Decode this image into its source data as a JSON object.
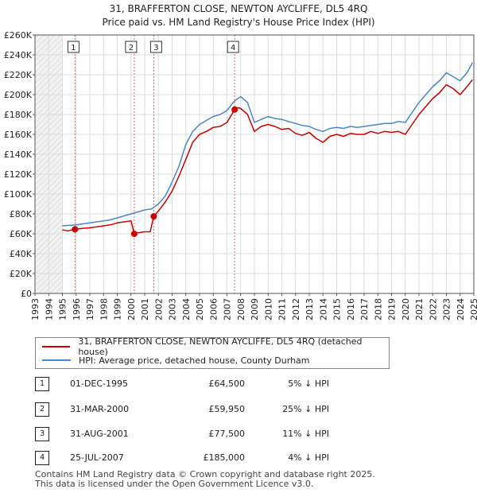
{
  "chart_data": {
    "type": "line",
    "title": "31, BRAFFERTON CLOSE, NEWTON AYCLIFFE, DL5 4RQ",
    "subtitle": "Price paid vs. HM Land Registry's House Price Index (HPI)",
    "xlabel": "",
    "ylabel": "",
    "xlim": [
      1993,
      2025
    ],
    "ylim": [
      0,
      260000
    ],
    "x_ticks": [
      "1993",
      "1994",
      "1995",
      "1996",
      "1997",
      "1998",
      "1999",
      "2000",
      "2001",
      "2002",
      "2003",
      "2004",
      "2005",
      "2006",
      "2007",
      "2008",
      "2009",
      "2010",
      "2011",
      "2012",
      "2013",
      "2014",
      "2015",
      "2016",
      "2017",
      "2018",
      "2019",
      "2020",
      "2021",
      "2022",
      "2023",
      "2024",
      "2025"
    ],
    "y_ticks": [
      {
        "value": 0,
        "label": "£0"
      },
      {
        "value": 20000,
        "label": "£20K"
      },
      {
        "value": 40000,
        "label": "£40K"
      },
      {
        "value": 60000,
        "label": "£60K"
      },
      {
        "value": 80000,
        "label": "£80K"
      },
      {
        "value": 100000,
        "label": "£100K"
      },
      {
        "value": 120000,
        "label": "£120K"
      },
      {
        "value": 140000,
        "label": "£140K"
      },
      {
        "value": 160000,
        "label": "£160K"
      },
      {
        "value": 180000,
        "label": "£180K"
      },
      {
        "value": 200000,
        "label": "£200K"
      },
      {
        "value": 220000,
        "label": "£220K"
      },
      {
        "value": 240000,
        "label": "£240K"
      },
      {
        "value": 260000,
        "label": "£260K"
      }
    ],
    "grid": true,
    "no_data_shading_until": 1995.0,
    "series": [
      {
        "name": "31, BRAFFERTON CLOSE, NEWTON AYCLIFFE, DL5 4RQ (detached house)",
        "color": "#cc0000",
        "x": [
          1995.0,
          1995.4,
          1995.92,
          1996.5,
          1997.0,
          1997.5,
          1998.0,
          1998.5,
          1999.0,
          1999.5,
          2000.0,
          2000.24,
          2000.5,
          2001.0,
          2001.4,
          2001.66,
          2002.0,
          2002.5,
          2003.0,
          2003.5,
          2004.0,
          2004.5,
          2005.0,
          2005.5,
          2006.0,
          2006.5,
          2007.0,
          2007.56,
          2007.8,
          2008.0,
          2008.5,
          2009.0,
          2009.5,
          2010.0,
          2010.5,
          2011.0,
          2011.5,
          2012.0,
          2012.5,
          2013.0,
          2013.5,
          2014.0,
          2014.5,
          2015.0,
          2015.5,
          2016.0,
          2016.5,
          2017.0,
          2017.5,
          2018.0,
          2018.5,
          2019.0,
          2019.5,
          2020.0,
          2020.5,
          2021.0,
          2021.5,
          2022.0,
          2022.5,
          2023.0,
          2023.5,
          2024.0,
          2024.5,
          2024.9
        ],
        "values": [
          64000,
          63000,
          64500,
          65500,
          66000,
          67000,
          68000,
          69000,
          71000,
          72000,
          73000,
          59950,
          61000,
          62000,
          62000,
          77500,
          83000,
          92000,
          103000,
          118000,
          135000,
          152000,
          160000,
          163000,
          167000,
          168000,
          172000,
          185000,
          187000,
          186000,
          180000,
          163000,
          168000,
          170000,
          168000,
          165000,
          166000,
          161000,
          159000,
          162000,
          156000,
          152000,
          158000,
          160000,
          158000,
          161000,
          160000,
          160000,
          163000,
          161000,
          163000,
          162000,
          163000,
          160000,
          170000,
          180000,
          188000,
          196000,
          202000,
          210000,
          206000,
          200000,
          208000,
          215000
        ]
      },
      {
        "name": "HPI: Average price, detached house, County Durham",
        "color": "#4a86c8",
        "x": [
          1995.0,
          1995.5,
          1996.0,
          1996.5,
          1997.0,
          1997.5,
          1998.0,
          1998.5,
          1999.0,
          1999.5,
          2000.0,
          2000.5,
          2001.0,
          2001.5,
          2002.0,
          2002.5,
          2003.0,
          2003.5,
          2004.0,
          2004.5,
          2005.0,
          2005.5,
          2006.0,
          2006.5,
          2007.0,
          2007.5,
          2008.0,
          2008.5,
          2009.0,
          2009.5,
          2010.0,
          2010.5,
          2011.0,
          2011.5,
          2012.0,
          2012.5,
          2013.0,
          2013.5,
          2014.0,
          2014.5,
          2015.0,
          2015.5,
          2016.0,
          2016.5,
          2017.0,
          2017.5,
          2018.0,
          2018.5,
          2019.0,
          2019.5,
          2020.0,
          2020.5,
          2021.0,
          2021.5,
          2022.0,
          2022.5,
          2023.0,
          2023.5,
          2024.0,
          2024.5,
          2024.9
        ],
        "values": [
          68000,
          68500,
          69000,
          70000,
          71000,
          72000,
          73000,
          74000,
          76000,
          78000,
          80000,
          82000,
          84000,
          85000,
          90000,
          98000,
          112000,
          128000,
          150000,
          163000,
          170000,
          174000,
          178000,
          180000,
          184000,
          193000,
          198000,
          192000,
          172000,
          175000,
          178000,
          176000,
          175000,
          173000,
          171000,
          169000,
          168000,
          165000,
          163000,
          166000,
          167000,
          166000,
          168000,
          167000,
          168000,
          169000,
          170000,
          171000,
          171000,
          173000,
          172000,
          182000,
          192000,
          200000,
          208000,
          214000,
          222000,
          218000,
          214000,
          222000,
          232000
        ]
      }
    ],
    "sales": [
      {
        "num": "1",
        "x": 1995.92,
        "value": 64500
      },
      {
        "num": "2",
        "x": 2000.24,
        "value": 59950
      },
      {
        "num": "3",
        "x": 2001.66,
        "value": 77500
      },
      {
        "num": "4",
        "x": 2007.56,
        "value": 185000
      }
    ]
  },
  "legend": {
    "property": "31, BRAFFERTON CLOSE, NEWTON AYCLIFFE, DL5 4RQ (detached house)",
    "hpi": "HPI: Average price, detached house, County Durham"
  },
  "sales_table": [
    {
      "num": "1",
      "date": "01-DEC-1995",
      "price": "£64,500",
      "hpi": "5% ↓ HPI"
    },
    {
      "num": "2",
      "date": "31-MAR-2000",
      "price": "£59,950",
      "hpi": "25% ↓ HPI"
    },
    {
      "num": "3",
      "date": "31-AUG-2001",
      "price": "£77,500",
      "hpi": "11% ↓ HPI"
    },
    {
      "num": "4",
      "date": "25-JUL-2007",
      "price": "£185,000",
      "hpi": "4% ↓ HPI"
    }
  ],
  "footer": {
    "line1": "Contains HM Land Registry data © Crown copyright and database right 2025.",
    "line2": "This data is licensed under the Open Government Licence v3.0."
  }
}
